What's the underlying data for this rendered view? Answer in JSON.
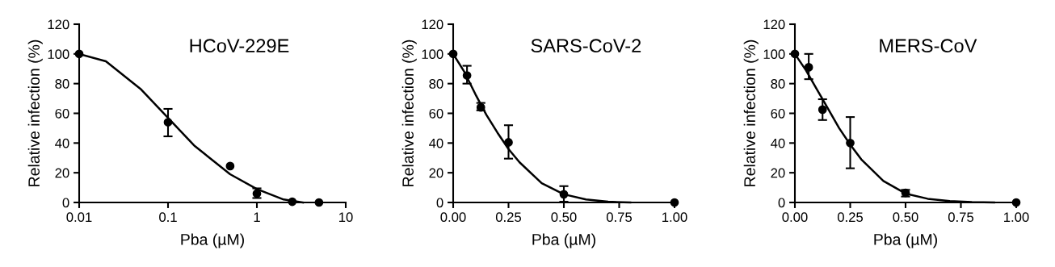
{
  "chart_data": [
    {
      "type": "scatter",
      "title": "HCoV-229E",
      "xlabel": "Pba (µM)",
      "ylabel": "Relative infection (%)",
      "log": "x",
      "xlim": [
        0.01,
        10
      ],
      "xticks": [
        0.01,
        0.1,
        1,
        10
      ],
      "ylim": [
        0,
        120
      ],
      "yticks": [
        0,
        20,
        40,
        60,
        80,
        100,
        120
      ],
      "grid": false,
      "legend": false,
      "series": [
        {
          "color": "#000000",
          "marker": "circle",
          "x": [
            0.01,
            0.1,
            0.5,
            1,
            2.5,
            5
          ],
          "values": [
            100,
            54,
            24.5,
            6,
            0.5,
            0
          ],
          "errors": [
            null,
            [
              44.5,
              63
            ],
            null,
            [
              3,
              9.5
            ],
            null,
            null
          ]
        },
        {
          "type": "line",
          "color": "#000000",
          "marker": "none",
          "line_style": "solid",
          "x": [
            0.01,
            0.02,
            0.05,
            0.1,
            0.2,
            0.5,
            1,
            2,
            3.3
          ],
          "values": [
            100,
            95,
            76,
            57,
            38,
            19,
            9,
            2,
            0
          ]
        }
      ]
    },
    {
      "type": "scatter",
      "title": "SARS-CoV-2",
      "xlabel": "Pba (µM)",
      "ylabel": "Relative infection (%)",
      "xlim": [
        0,
        1
      ],
      "xticks": [
        {
          "value": 0,
          "label": "0.00"
        },
        0.25,
        {
          "value": 0.5,
          "label": "0.50"
        },
        0.75,
        {
          "value": 1,
          "label": "1.00"
        }
      ],
      "ylim": [
        0,
        120
      ],
      "yticks": [
        0,
        20,
        40,
        60,
        80,
        100,
        120
      ],
      "grid": false,
      "legend": false,
      "series": [
        {
          "color": "#000000",
          "marker": "circle",
          "x": [
            0,
            0.0625,
            0.125,
            0.25,
            0.5,
            1
          ],
          "values": [
            100,
            85.5,
            64,
            40.5,
            5.5,
            0
          ],
          "errors": [
            null,
            [
              80,
              92
            ],
            [
              62,
              67
            ],
            [
              29.5,
              52
            ],
            [
              0.5,
              11
            ],
            null
          ]
        },
        {
          "type": "line",
          "color": "#000000",
          "marker": "none",
          "line_style": "solid",
          "x": [
            0,
            0.05,
            0.1,
            0.15,
            0.2,
            0.25,
            0.3,
            0.4,
            0.5,
            0.6,
            0.7,
            0.8
          ],
          "values": [
            100,
            88,
            73,
            59,
            47,
            36,
            27,
            13,
            5.5,
            2,
            0.5,
            0
          ]
        }
      ]
    },
    {
      "type": "scatter",
      "title": "MERS-CoV",
      "xlabel": "Pba (µM)",
      "ylabel": "Relative infection (%)",
      "xlim": [
        0,
        1
      ],
      "xticks": [
        {
          "value": 0,
          "label": "0.00"
        },
        0.25,
        {
          "value": 0.5,
          "label": "0.50"
        },
        0.75,
        {
          "value": 1,
          "label": "1.00"
        }
      ],
      "ylim": [
        0,
        120
      ],
      "yticks": [
        0,
        20,
        40,
        60,
        80,
        100,
        120
      ],
      "grid": false,
      "legend": false,
      "series": [
        {
          "color": "#000000",
          "marker": "circle",
          "x": [
            0,
            0.0625,
            0.125,
            0.25,
            0.5,
            1
          ],
          "values": [
            100,
            91,
            62.5,
            40,
            6.5,
            0
          ],
          "errors": [
            null,
            [
              83,
              100
            ],
            [
              55.5,
              69.5
            ],
            [
              23,
              57.5
            ],
            [
              4,
              8.5
            ],
            null
          ]
        },
        {
          "type": "line",
          "color": "#000000",
          "marker": "none",
          "line_style": "solid",
          "x": [
            0,
            0.05,
            0.1,
            0.15,
            0.2,
            0.25,
            0.3,
            0.4,
            0.5,
            0.6,
            0.7,
            0.8,
            0.9
          ],
          "values": [
            100,
            89,
            76,
            63,
            50,
            39,
            29,
            14.5,
            6,
            2.5,
            1,
            0.3,
            0
          ]
        }
      ]
    }
  ]
}
